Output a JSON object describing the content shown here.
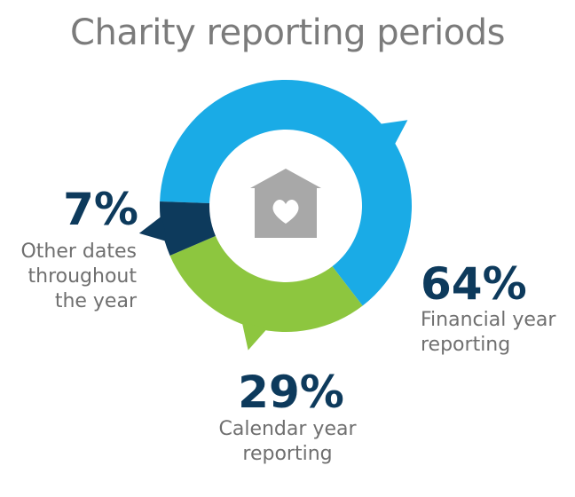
{
  "title": "Charity reporting periods",
  "chart_data": {
    "type": "pie",
    "title": "Charity reporting periods",
    "slices": [
      {
        "label": "Financial year reporting",
        "value": 64,
        "display": "64%",
        "color": "#1aabe6"
      },
      {
        "label": "Calendar year reporting",
        "value": 29,
        "display": "29%",
        "color": "#8dc63f"
      },
      {
        "label": "Other dates throughout the year",
        "value": 7,
        "display": "7%",
        "color": "#0d3a5c"
      }
    ]
  },
  "labels": {
    "other": {
      "pct": "7%",
      "line1": "Other dates",
      "line2": "throughout",
      "line3": "the year"
    },
    "financial": {
      "pct": "64%",
      "line1": "Financial year",
      "line2": "reporting"
    },
    "calendar": {
      "pct": "29%",
      "line1": "Calendar year",
      "line2": "reporting"
    }
  },
  "icons": {
    "center": "house-heart-icon"
  }
}
